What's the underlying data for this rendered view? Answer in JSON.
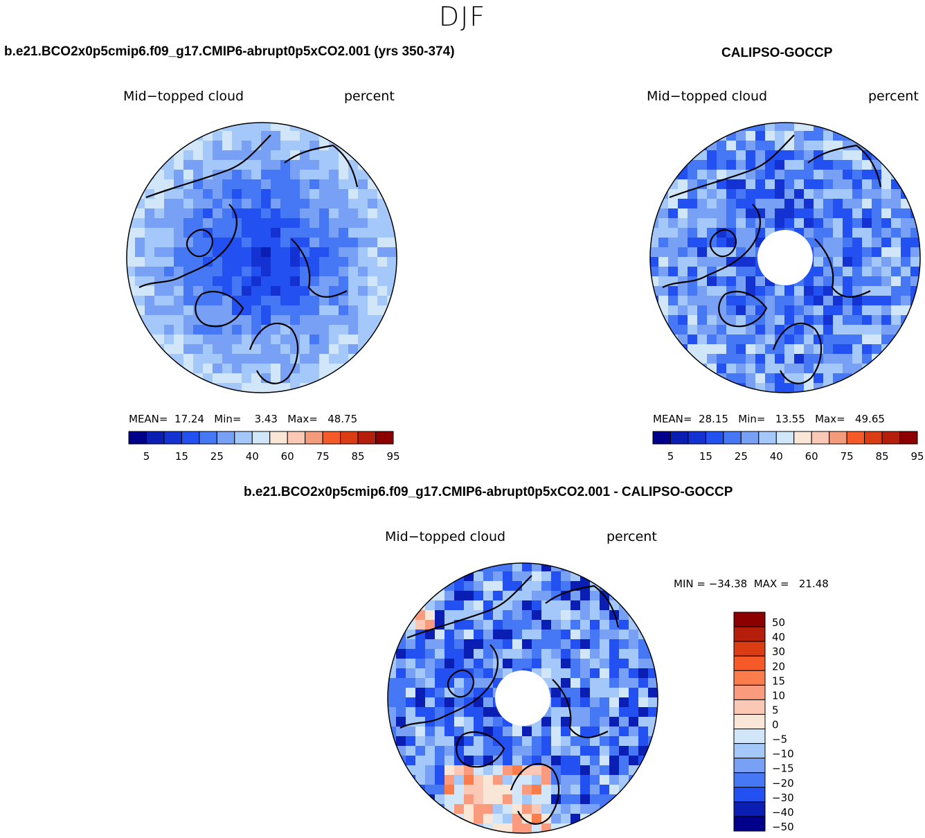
{
  "figure": {
    "season": "DJF",
    "panel1_title": "b.e21.BCO2x0p5cmip6.f09_g17.CMIP6-abrupt0p5xCO2.001 (yrs 350-374)",
    "panel2_title": "CALIPSO-GOCCP",
    "panel3_title": "b.e21.BCO2x0p5cmip6.f09_g17.CMIP6-abrupt0p5xCO2.001 - CALIPSO-GOCCP"
  },
  "panels": [
    {
      "variable": "Mid−topped cloud",
      "units": "percent",
      "stats": {
        "mean_label": "MEAN=",
        "mean": "17.24",
        "min_label": "Min=",
        "min": "3.43",
        "max_label": "Max=",
        "max": "48.75"
      }
    },
    {
      "variable": "Mid−topped cloud",
      "units": "percent",
      "stats": {
        "mean_label": "MEAN=",
        "mean": "28.15",
        "min_label": "Min=",
        "min": "13.55",
        "max_label": "Max=",
        "max": "49.65"
      }
    },
    {
      "variable": "Mid−topped cloud",
      "units": "percent",
      "minmax_text": "MIN = −34.38  MAX =   21.48"
    }
  ],
  "chart_data": [
    {
      "type": "heatmap",
      "projection": "north-polar-stereographic",
      "title": "b.e21.BCO2x0p5cmip6.f09_g17.CMIP6-abrupt0p5xCO2.001 (yrs 350-374)",
      "variable": "Mid-topped cloud",
      "units": "percent",
      "mean": 17.24,
      "min": 3.43,
      "max": 48.75,
      "colorbar_levels": [
        5,
        10,
        15,
        20,
        25,
        30,
        40,
        50,
        60,
        70,
        75,
        80,
        85,
        90,
        95
      ],
      "colorbar_tick_labels": [
        "5",
        "15",
        "25",
        "40",
        "60",
        "75",
        "85",
        "95"
      ]
    },
    {
      "type": "heatmap",
      "projection": "north-polar-stereographic",
      "title": "CALIPSO-GOCCP",
      "variable": "Mid-topped cloud",
      "units": "percent",
      "mean": 28.15,
      "min": 13.55,
      "max": 49.65,
      "colorbar_levels": [
        5,
        10,
        15,
        20,
        25,
        30,
        40,
        50,
        60,
        70,
        75,
        80,
        85,
        90,
        95
      ],
      "colorbar_tick_labels": [
        "5",
        "15",
        "25",
        "40",
        "60",
        "75",
        "85",
        "95"
      ]
    },
    {
      "type": "heatmap",
      "projection": "north-polar-stereographic",
      "title": "b.e21.BCO2x0p5cmip6.f09_g17.CMIP6-abrupt0p5xCO2.001 - CALIPSO-GOCCP",
      "variable": "Mid-topped cloud",
      "units": "percent",
      "min": -34.38,
      "max": 21.48,
      "colorbar_levels": [
        50,
        40,
        30,
        20,
        15,
        10,
        5,
        0,
        -5,
        -10,
        -15,
        -20,
        -30,
        -40,
        -50
      ],
      "colorbar_tick_labels": [
        "50",
        "40",
        "30",
        "20",
        "15",
        "10",
        "5",
        "0",
        "−5",
        "−10",
        "−15",
        "−20",
        "−30",
        "−40",
        "−50"
      ]
    }
  ],
  "colors": {
    "abs_scale": [
      "#00008b",
      "#0a1eb4",
      "#1432d2",
      "#2350f0",
      "#4678f5",
      "#78a0f5",
      "#a5c8fa",
      "#d2e6fa",
      "#fae6d7",
      "#fac8b4",
      "#f59b7d",
      "#f55a28",
      "#dc3c14",
      "#b41e0a",
      "#8c0000"
    ],
    "diff_scale": [
      "#8c0000",
      "#b41e0a",
      "#dc3c14",
      "#f55a28",
      "#fa7d4b",
      "#fa9b7d",
      "#fac8b4",
      "#fae6d7",
      "#d2e6fa",
      "#a5c8fa",
      "#78a0f5",
      "#4678f5",
      "#2350f0",
      "#0a1eb4",
      "#00008b"
    ]
  }
}
